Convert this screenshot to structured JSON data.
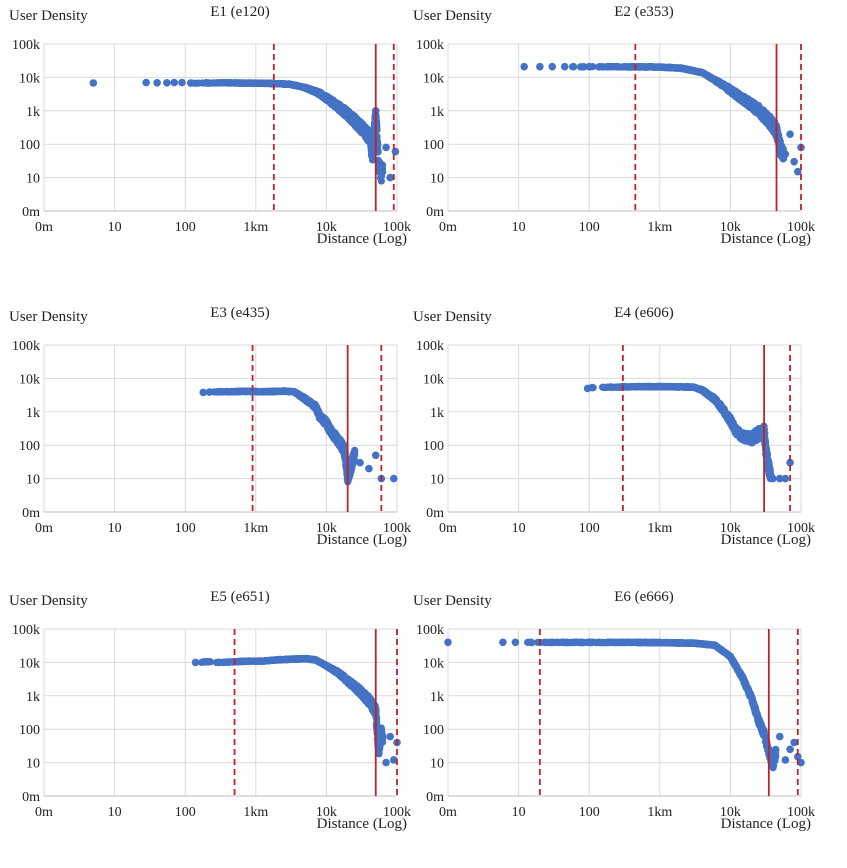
{
  "figure": {
    "panels_grid": "3 rows x 2 columns"
  },
  "colors": {
    "points": "#4472c4",
    "median_line": "#c0202a",
    "quantile_lines": "#c0202a",
    "gridlines": "#d9d9d9"
  },
  "chart_data": [
    {
      "type": "scatter",
      "title": "E1 (e120)",
      "ylabel": "User Density",
      "xlabel": "Distance (Log)",
      "xscale": "log",
      "yscale": "log",
      "xticks": [
        "0m",
        "10",
        "100",
        "1km",
        "10k",
        "100k"
      ],
      "yticks": [
        "0m",
        "10",
        "100",
        "1k",
        "10k",
        "100k"
      ],
      "xlim": [
        1,
        100000
      ],
      "ylim": [
        1,
        100000
      ],
      "grid": true,
      "solid_line_x": 50000,
      "dashed_lines_x": [
        1800,
        90000
      ],
      "plateau": {
        "x_start": 80,
        "y": 6500
      },
      "knee_x": 4000,
      "points": [
        [
          5,
          6800
        ],
        [
          28,
          7000
        ],
        [
          40,
          6900
        ],
        [
          55,
          6900
        ],
        [
          70,
          7000
        ],
        [
          90,
          7000
        ],
        [
          120,
          6800
        ],
        [
          200,
          6900
        ],
        [
          400,
          6900
        ],
        [
          800,
          6800
        ],
        [
          1500,
          6700
        ],
        [
          3000,
          6300
        ],
        [
          5000,
          5000
        ],
        [
          8000,
          3500
        ],
        [
          12000,
          2000
        ],
        [
          20000,
          900
        ],
        [
          30000,
          400
        ],
        [
          40000,
          200
        ],
        [
          45000,
          60
        ],
        [
          50000,
          1000
        ],
        [
          55000,
          30
        ],
        [
          60000,
          15
        ],
        [
          70000,
          80
        ],
        [
          80000,
          10
        ],
        [
          95000,
          60
        ]
      ]
    },
    {
      "type": "scatter",
      "title": "E2 (e353)",
      "ylabel": "User Density",
      "xlabel": "Distance (Log)",
      "xscale": "log",
      "yscale": "log",
      "xticks": [
        "0m",
        "10",
        "100",
        "1km",
        "10k",
        "100k"
      ],
      "yticks": [
        "0m",
        "10",
        "100",
        "1k",
        "10k",
        "100k"
      ],
      "xlim": [
        1,
        100000
      ],
      "ylim": [
        1,
        100000
      ],
      "grid": true,
      "solid_line_x": 45000,
      "dashed_lines_x": [
        450,
        100000
      ],
      "plateau": {
        "x_start": 50,
        "y": 21000
      },
      "knee_x": 4000,
      "points": [
        [
          12,
          21000
        ],
        [
          20,
          21000
        ],
        [
          30,
          21000
        ],
        [
          45,
          21000
        ],
        [
          60,
          21000
        ],
        [
          100,
          21000
        ],
        [
          200,
          21000
        ],
        [
          500,
          20800
        ],
        [
          1000,
          20500
        ],
        [
          2000,
          19000
        ],
        [
          4000,
          14000
        ],
        [
          8000,
          6000
        ],
        [
          15000,
          2500
        ],
        [
          25000,
          1200
        ],
        [
          35000,
          600
        ],
        [
          45000,
          300
        ],
        [
          50000,
          100
        ],
        [
          60000,
          50
        ],
        [
          70000,
          200
        ],
        [
          80000,
          30
        ],
        [
          90000,
          15
        ],
        [
          100000,
          80
        ]
      ]
    },
    {
      "type": "scatter",
      "title": "E3 (e435)",
      "ylabel": "User Density",
      "xlabel": "Distance (Log)",
      "xscale": "log",
      "yscale": "log",
      "xticks": [
        "0m",
        "10",
        "100",
        "1km",
        "10k",
        "100k"
      ],
      "yticks": [
        "0m",
        "10",
        "100",
        "1k",
        "10k",
        "100k"
      ],
      "xlim": [
        1,
        100000
      ],
      "ylim": [
        1,
        100000
      ],
      "grid": true,
      "solid_line_x": 20000,
      "dashed_lines_x": [
        900,
        60000
      ],
      "plateau": {
        "x_start": 180,
        "y": 4000
      },
      "knee_x": 3000,
      "points": [
        [
          180,
          3800
        ],
        [
          220,
          3900
        ],
        [
          300,
          4000
        ],
        [
          400,
          4000
        ],
        [
          600,
          4100
        ],
        [
          900,
          4100
        ],
        [
          1200,
          4000
        ],
        [
          1800,
          4100
        ],
        [
          2500,
          4200
        ],
        [
          3500,
          4000
        ],
        [
          5000,
          2500
        ],
        [
          7000,
          1500
        ],
        [
          8000,
          800
        ],
        [
          10000,
          500
        ],
        [
          12000,
          250
        ],
        [
          15000,
          150
        ],
        [
          18000,
          80
        ],
        [
          20000,
          12
        ],
        [
          25000,
          60
        ],
        [
          30000,
          30
        ],
        [
          40000,
          20
        ],
        [
          50000,
          50
        ],
        [
          60000,
          10
        ],
        [
          90000,
          10
        ]
      ]
    },
    {
      "type": "scatter",
      "title": "E4 (e606)",
      "ylabel": "User Density",
      "xlabel": "Distance (Log)",
      "xscale": "log",
      "yscale": "log",
      "xticks": [
        "0m",
        "10",
        "100",
        "1km",
        "10k",
        "100k"
      ],
      "yticks": [
        "0m",
        "10",
        "100",
        "1k",
        "10k",
        "100k"
      ],
      "xlim": [
        1,
        100000
      ],
      "ylim": [
        1,
        100000
      ],
      "grid": true,
      "solid_line_x": 30000,
      "dashed_lines_x": [
        300,
        70000
      ],
      "plateau": {
        "x_start": 100,
        "y": 5500
      },
      "knee_x": 3000,
      "points": [
        [
          95,
          5000
        ],
        [
          110,
          5300
        ],
        [
          200,
          5500
        ],
        [
          300,
          5600
        ],
        [
          500,
          5700
        ],
        [
          1000,
          5700
        ],
        [
          2000,
          5600
        ],
        [
          3000,
          5500
        ],
        [
          4000,
          4500
        ],
        [
          6000,
          2500
        ],
        [
          8000,
          1200
        ],
        [
          10000,
          600
        ],
        [
          12000,
          300
        ],
        [
          15000,
          200
        ],
        [
          20000,
          180
        ],
        [
          25000,
          250
        ],
        [
          30000,
          300
        ],
        [
          32000,
          80
        ],
        [
          35000,
          25
        ],
        [
          40000,
          10
        ],
        [
          50000,
          10
        ],
        [
          60000,
          10
        ],
        [
          70000,
          30
        ]
      ]
    },
    {
      "type": "scatter",
      "title": "E5 (e651)",
      "ylabel": "User Density",
      "xlabel": "Distance (Log)",
      "xscale": "log",
      "yscale": "log",
      "xticks": [
        "0m",
        "10",
        "100",
        "1km",
        "10k",
        "100k"
      ],
      "yticks": [
        "0m",
        "10",
        "100",
        "1k",
        "10k",
        "100k"
      ],
      "xlim": [
        1,
        100000
      ],
      "ylim": [
        1,
        100000
      ],
      "grid": true,
      "solid_line_x": 50000,
      "dashed_lines_x": [
        500,
        100000
      ],
      "plateau": {
        "x_start": 130,
        "y": 10000
      },
      "knee_x": 8000,
      "points": [
        [
          140,
          10000
        ],
        [
          200,
          10500
        ],
        [
          300,
          10000
        ],
        [
          500,
          10500
        ],
        [
          800,
          11000
        ],
        [
          1200,
          11000
        ],
        [
          2000,
          12000
        ],
        [
          3000,
          12500
        ],
        [
          5000,
          13000
        ],
        [
          7000,
          12000
        ],
        [
          10000,
          8000
        ],
        [
          15000,
          5000
        ],
        [
          20000,
          3000
        ],
        [
          30000,
          1500
        ],
        [
          40000,
          800
        ],
        [
          50000,
          400
        ],
        [
          55000,
          20
        ],
        [
          60000,
          100
        ],
        [
          70000,
          10
        ],
        [
          80000,
          60
        ],
        [
          90000,
          12
        ],
        [
          100000,
          40
        ]
      ]
    },
    {
      "type": "scatter",
      "title": "E6 (e666)",
      "ylabel": "User Density",
      "xlabel": "Distance (Log)",
      "xscale": "log",
      "yscale": "log",
      "xticks": [
        "0m",
        "10",
        "100",
        "1km",
        "10k",
        "100k"
      ],
      "yticks": [
        "0m",
        "10",
        "100",
        "1k",
        "10k",
        "100k"
      ],
      "xlim": [
        1,
        100000
      ],
      "ylim": [
        1,
        100000
      ],
      "grid": true,
      "solid_line_x": 35000,
      "dashed_lines_x": [
        20,
        90000
      ],
      "plateau": {
        "x_start": 10,
        "y": 40000
      },
      "knee_x": 8000,
      "points": [
        [
          1,
          40000
        ],
        [
          6,
          40000
        ],
        [
          9,
          40000
        ],
        [
          15,
          40000
        ],
        [
          30,
          40000
        ],
        [
          60,
          40000
        ],
        [
          100,
          40000
        ],
        [
          300,
          40000
        ],
        [
          1000,
          39500
        ],
        [
          3000,
          38000
        ],
        [
          6000,
          33000
        ],
        [
          10000,
          15000
        ],
        [
          15000,
          3500
        ],
        [
          20000,
          900
        ],
        [
          25000,
          200
        ],
        [
          30000,
          80
        ],
        [
          35000,
          25
        ],
        [
          40000,
          10
        ],
        [
          50000,
          60
        ],
        [
          60000,
          12
        ],
        [
          70000,
          25
        ],
        [
          80000,
          40
        ],
        [
          90000,
          15
        ],
        [
          100000,
          10
        ]
      ]
    }
  ]
}
